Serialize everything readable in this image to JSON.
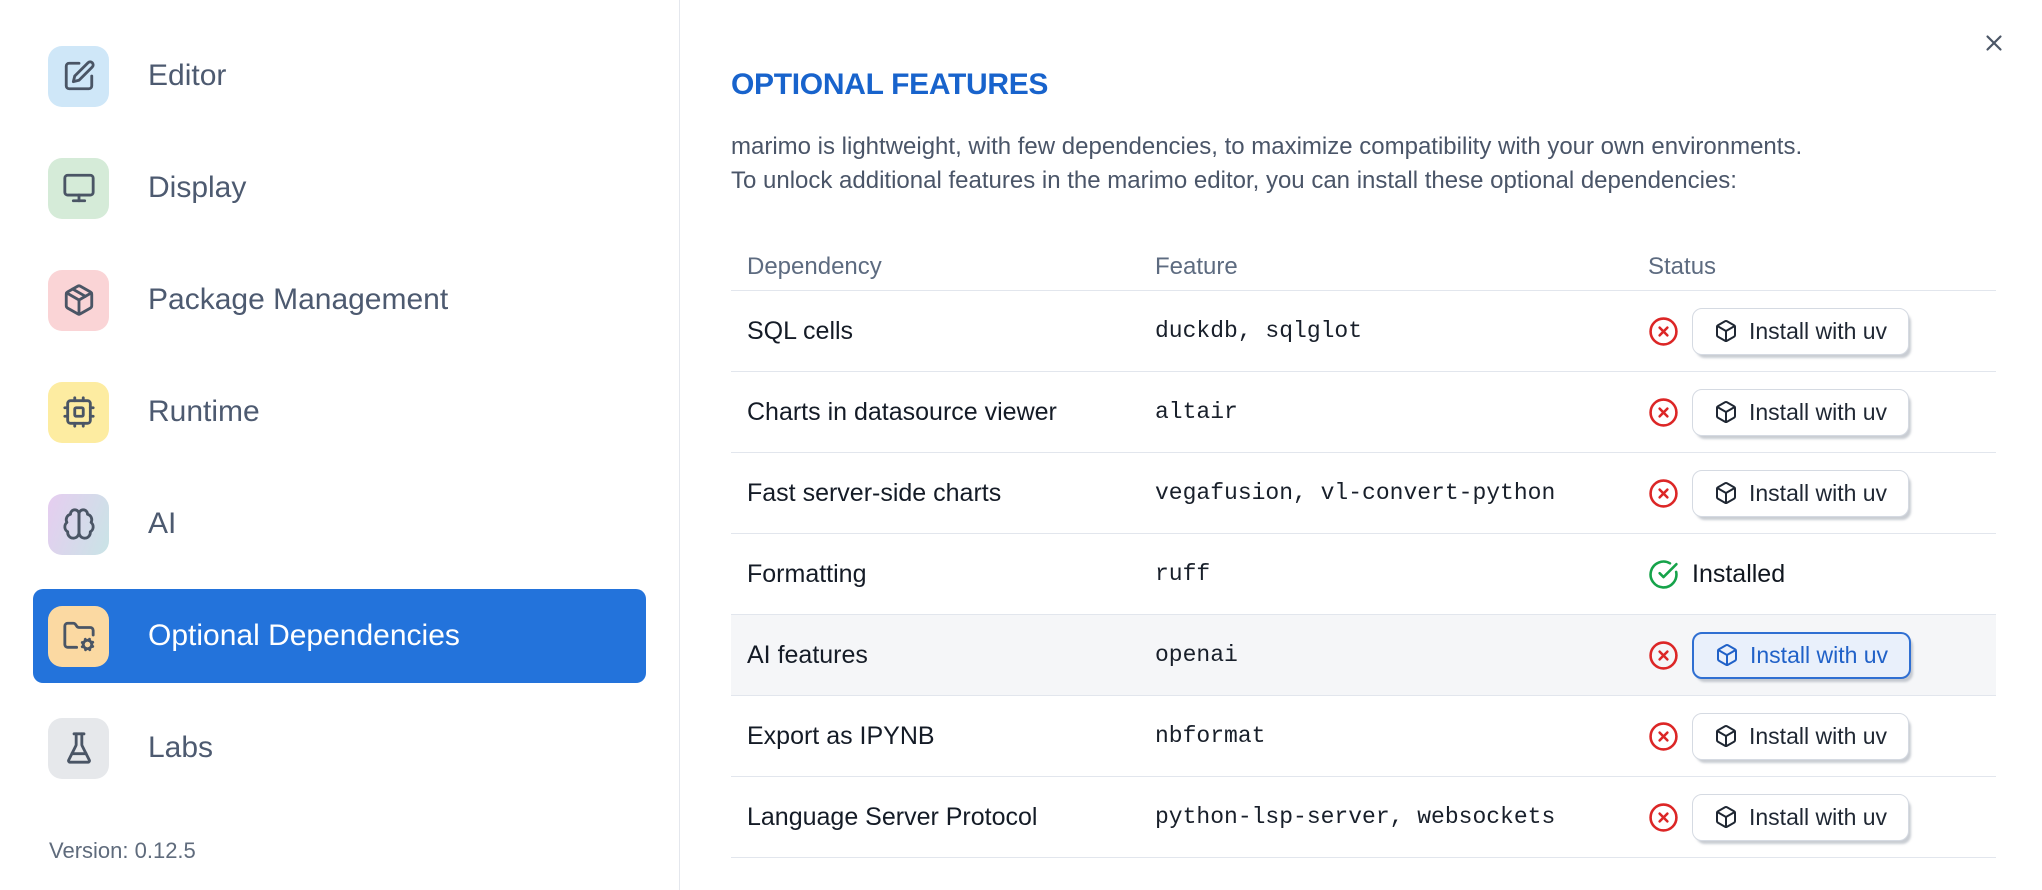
{
  "colors": {
    "selected_item_blue": "#2373db",
    "heading_blue": "#1863cc",
    "error_red": "#dc2626",
    "success_green": "#16a34a"
  },
  "sidebar": {
    "items": [
      {
        "label": "Editor",
        "icon": "editor-icon",
        "tile_bg": "#cfe7f8",
        "selected": false
      },
      {
        "label": "Display",
        "icon": "display-icon",
        "tile_bg": "#d5ebd8",
        "selected": false
      },
      {
        "label": "Package Management",
        "icon": "package-icon",
        "tile_bg": "#fad4d6",
        "selected": false
      },
      {
        "label": "Runtime",
        "icon": "cpu-icon",
        "tile_bg": "#fdeca1",
        "selected": false
      },
      {
        "label": "AI",
        "icon": "brain-icon",
        "tile_bg": "linear-gradient(110deg, #e6cdf0 0%, #c9e4e6 100%)",
        "selected": false
      },
      {
        "label": "Optional Dependencies",
        "icon": "folder-cog-icon",
        "tile_bg": "#fbd9a2",
        "selected": true
      },
      {
        "label": "Labs",
        "icon": "flask-icon",
        "tile_bg": "#e6e8eb",
        "selected": false
      }
    ],
    "version_label": "Version: 0.12.5"
  },
  "panel": {
    "title": "OPTIONAL FEATURES",
    "description_lines": [
      "marimo is lightweight, with few dependencies, to maximize compatibility with your own environments.",
      "To unlock additional features in the marimo editor, you can install these optional dependencies:"
    ],
    "close_icon": "x-icon"
  },
  "table": {
    "headers": {
      "dependency": "Dependency",
      "feature": "Feature",
      "status": "Status"
    },
    "install_button_label": "Install with uv",
    "installed_label": "Installed",
    "status_icons": {
      "not_installed": "circle-x-icon",
      "installed": "circle-check-icon",
      "install_button": "box-icon"
    },
    "rows": [
      {
        "dependency": "SQL cells",
        "feature": "duckdb, sqlglot",
        "installed": false,
        "highlighted": false
      },
      {
        "dependency": "Charts in datasource viewer",
        "feature": "altair",
        "installed": false,
        "highlighted": false
      },
      {
        "dependency": "Fast server-side charts",
        "feature": "vegafusion, vl-convert-python",
        "installed": false,
        "highlighted": false
      },
      {
        "dependency": "Formatting",
        "feature": "ruff",
        "installed": true,
        "highlighted": false
      },
      {
        "dependency": "AI features",
        "feature": "openai",
        "installed": false,
        "highlighted": true
      },
      {
        "dependency": "Export as IPYNB",
        "feature": "nbformat",
        "installed": false,
        "highlighted": false
      },
      {
        "dependency": "Language Server Protocol",
        "feature": "python-lsp-server, websockets",
        "installed": false,
        "highlighted": false
      }
    ]
  }
}
